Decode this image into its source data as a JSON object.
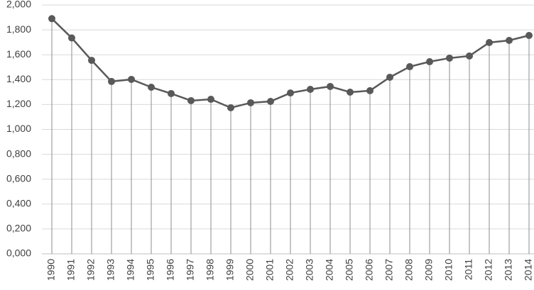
{
  "chart_data": {
    "type": "line",
    "x": [
      "1990",
      "1991",
      "1992",
      "1993",
      "1994",
      "1995",
      "1996",
      "1997",
      "1998",
      "1999",
      "2000",
      "2001",
      "2002",
      "2003",
      "2004",
      "2005",
      "2006",
      "2007",
      "2008",
      "2009",
      "2010",
      "2011",
      "2012",
      "2013",
      "2014"
    ],
    "series": [
      {
        "color": "#595959",
        "values": [
          1.89,
          1.735,
          1.555,
          1.385,
          1.402,
          1.339,
          1.288,
          1.231,
          1.242,
          1.174,
          1.214,
          1.225,
          1.293,
          1.322,
          1.345,
          1.299,
          1.311,
          1.419,
          1.504,
          1.544,
          1.573,
          1.59,
          1.698,
          1.715,
          1.755
        ]
      }
    ],
    "ylim": [
      0,
      2
    ],
    "yticks": [
      {
        "value": 0,
        "label": "0,000"
      },
      {
        "value": 0.2,
        "label": "0,200"
      },
      {
        "value": 0.4,
        "label": "0,400"
      },
      {
        "value": 0.6,
        "label": "0,600"
      },
      {
        "value": 0.8,
        "label": "0,800"
      },
      {
        "value": 1,
        "label": "1,000"
      },
      {
        "value": 1.2,
        "label": "1,200"
      },
      {
        "value": 1.4,
        "label": "1,400"
      },
      {
        "value": 1.6,
        "label": "1,600"
      },
      {
        "value": 1.8,
        "label": "1,800"
      },
      {
        "value": 2,
        "label": "2,000"
      }
    ],
    "grid": true
  }
}
